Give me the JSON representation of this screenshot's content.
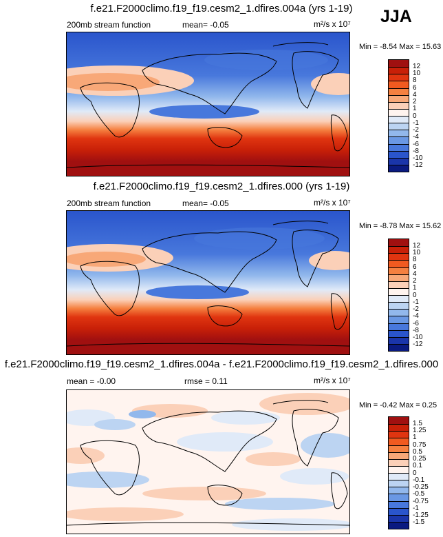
{
  "season": "JJA",
  "panels": [
    {
      "title": "f.e21.F2000climo.f19_f19.cesm2_1.dfires.004a (yrs 1-19)",
      "left_label": "200mb stream function",
      "mean_label": "mean=  -0.05",
      "units_label": "m²/s x 10⁷",
      "minmax_label": "Min = -8.54 Max = 15.63"
    },
    {
      "title": "f.e21.F2000climo.f19_f19.cesm2_1.dfires.000 (yrs 1-19)",
      "left_label": "200mb stream function",
      "mean_label": "mean=  -0.05",
      "units_label": "m²/s x 10⁷",
      "minmax_label": "Min = -8.78 Max = 15.62"
    },
    {
      "title": "f.e21.F2000climo.f19_f19.cesm2_1.dfires.004a - f.e21.F2000climo.f19_f19.cesm2_1.dfires.000",
      "left_label": "mean = -0.00",
      "rmse_label": "rmse =   0.11",
      "units_label": "m²/s x 10⁷",
      "minmax_label": "Min = -0.42 Max =  0.25"
    }
  ],
  "chart_data": [
    {
      "type": "heatmap",
      "variable": "200mb stream function",
      "units": "m2/s x 10^7",
      "mean": -0.05,
      "min": -8.54,
      "max": 15.63,
      "contour_levels": [
        12,
        10,
        8,
        6,
        4,
        2,
        1,
        0,
        -1,
        -2,
        -4,
        -6,
        -8,
        -10,
        -12
      ],
      "colors": [
        "#a01010",
        "#c82008",
        "#e03510",
        "#f05a20",
        "#f58040",
        "#f8a878",
        "#fbd0b8",
        "#fff4ef",
        "#e0eaf8",
        "#bcd4f2",
        "#92b8ec",
        "#6a98e4",
        "#4878dc",
        "#2a55cc",
        "#1a35aa",
        "#0a1a80"
      ]
    },
    {
      "type": "heatmap",
      "variable": "200mb stream function",
      "units": "m2/s x 10^7",
      "mean": -0.05,
      "min": -8.78,
      "max": 15.62,
      "contour_levels": [
        12,
        10,
        8,
        6,
        4,
        2,
        1,
        0,
        -1,
        -2,
        -4,
        -6,
        -8,
        -10,
        -12
      ],
      "colors": [
        "#a01010",
        "#c82008",
        "#e03510",
        "#f05a20",
        "#f58040",
        "#f8a878",
        "#fbd0b8",
        "#fff4ef",
        "#e0eaf8",
        "#bcd4f2",
        "#92b8ec",
        "#6a98e4",
        "#4878dc",
        "#2a55cc",
        "#1a35aa",
        "#0a1a80"
      ]
    },
    {
      "type": "heatmap",
      "variable": "200mb stream function difference",
      "units": "m2/s x 10^7",
      "mean": -0.0,
      "rmse": 0.11,
      "min": -0.42,
      "max": 0.25,
      "contour_levels": [
        "1.5",
        "1.25",
        "1",
        "0.75",
        "0.5",
        "0.25",
        "0.1",
        "0",
        "-0.1",
        "-0.25",
        "-0.5",
        "-0.75",
        "-1",
        "-1.25",
        "-1.5"
      ],
      "colors": [
        "#a01010",
        "#c82008",
        "#e03510",
        "#f05a20",
        "#f58040",
        "#f8a878",
        "#fbd0b8",
        "#fff4ef",
        "#e0eaf8",
        "#bcd4f2",
        "#92b8ec",
        "#6a98e4",
        "#4878dc",
        "#2a55cc",
        "#1a35aa",
        "#0a1a80"
      ]
    }
  ]
}
